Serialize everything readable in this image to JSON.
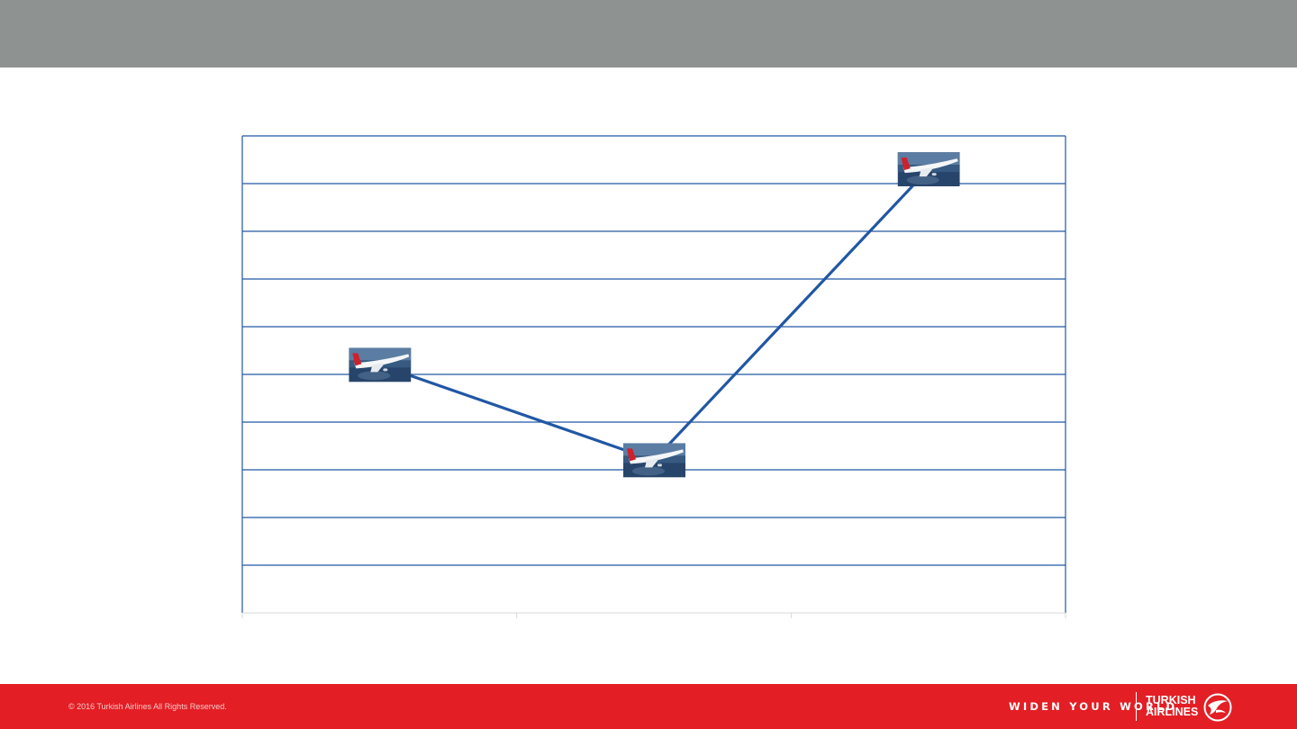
{
  "chart_data": {
    "type": "line",
    "title": "",
    "xlabel": "",
    "ylabel": "",
    "categories": [
      "",
      "",
      ""
    ],
    "values": [
      5.2,
      3.2,
      9.3
    ],
    "ylim": [
      0,
      10
    ],
    "grid": true,
    "marker": "airplane-photo",
    "colors": {
      "line": "#2157a4",
      "grid": "#2157a4",
      "axis": "#d9d9d9"
    }
  },
  "footer": {
    "copyright": "© 2016 Turkish Airlines  All Rights Reserved.",
    "slogan": "WIDEN YOUR WORLD",
    "brand_line1": "TURKISH",
    "brand_line2": "AIRLINES",
    "brand_icon": "turkish-airlines-bird-logo",
    "background": "#e31e24"
  },
  "header": {
    "background": "#8e9392"
  }
}
